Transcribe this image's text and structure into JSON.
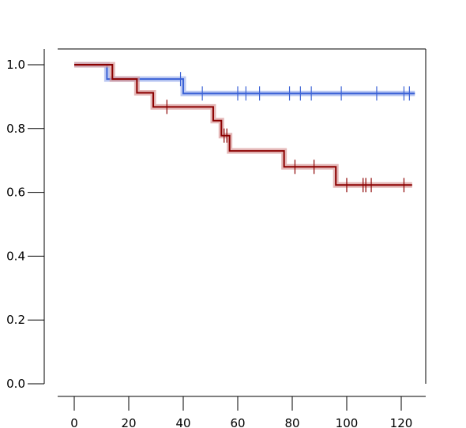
{
  "chart_data": {
    "type": "line",
    "subtype": "kaplan-meier",
    "title": "",
    "xlabel": "",
    "ylabel": "",
    "xlim": [
      -6,
      129
    ],
    "ylim": [
      0,
      1.05
    ],
    "x_ticks": [
      0,
      20,
      40,
      60,
      80,
      100,
      120
    ],
    "x_tick_labels": [
      "0",
      "20",
      "40",
      "60",
      "80",
      "100",
      "120"
    ],
    "y_ticks": [
      0.0,
      0.2,
      0.4,
      0.6,
      0.8,
      1.0
    ],
    "y_tick_labels": [
      "0.0",
      "0.2",
      "0.4",
      "0.6",
      "0.8",
      "1.0"
    ],
    "grid": false,
    "series": [
      {
        "color": "#3b62d6",
        "band_color": "#9fb2ec",
        "steps": [
          [
            0,
            1.0
          ],
          [
            12,
            0.955
          ],
          [
            40,
            0.91
          ],
          [
            125,
            0.91
          ]
        ],
        "censor_marks": [
          [
            39,
            0.955
          ],
          [
            47,
            0.91
          ],
          [
            60,
            0.91
          ],
          [
            63,
            0.91
          ],
          [
            68,
            0.91
          ],
          [
            79,
            0.91
          ],
          [
            83,
            0.91
          ],
          [
            87,
            0.91
          ],
          [
            98,
            0.91
          ],
          [
            111,
            0.91
          ],
          [
            121,
            0.91
          ],
          [
            123,
            0.91
          ]
        ]
      },
      {
        "color": "#8b0000",
        "band_color": "#d99a9a",
        "steps": [
          [
            0,
            1.0
          ],
          [
            14,
            0.955
          ],
          [
            23,
            0.912
          ],
          [
            29,
            0.868
          ],
          [
            51,
            0.825
          ],
          [
            54,
            0.778
          ],
          [
            57,
            0.73
          ],
          [
            77,
            0.68
          ],
          [
            96,
            0.623
          ],
          [
            124,
            0.623
          ]
        ],
        "censor_marks": [
          [
            34,
            0.868
          ],
          [
            55,
            0.778
          ],
          [
            56,
            0.778
          ],
          [
            81,
            0.68
          ],
          [
            88,
            0.68
          ],
          [
            100,
            0.623
          ],
          [
            106,
            0.623
          ],
          [
            107,
            0.623
          ],
          [
            109,
            0.623
          ],
          [
            121,
            0.623
          ]
        ]
      }
    ]
  }
}
